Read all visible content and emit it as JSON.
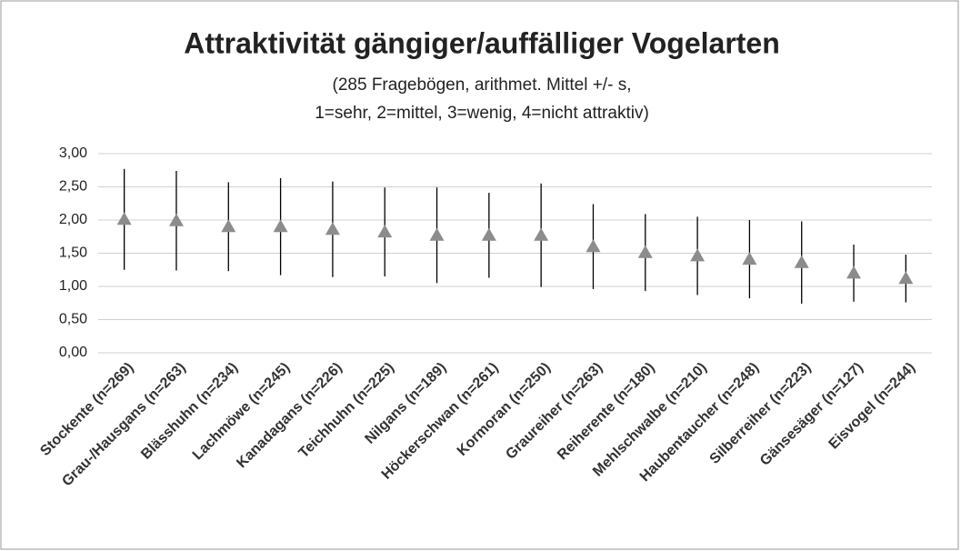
{
  "chart_data": {
    "type": "errorbar",
    "title": "Attraktivität gängiger/auffälliger Vogelarten",
    "subtitle": [
      "(285 Fragebögen, arithmet. Mittel +/- s,",
      "1=sehr, 2=mittel, 3=wenig, 4=nicht attraktiv)"
    ],
    "categories": [
      "Stockente (n=269)",
      "Grau-/Hausgans (n=263)",
      "Blässhuhn (n=234)",
      "Lachmöwe (n=245)",
      "Kanadagans (n=226)",
      "Teichhuhn (n=225)",
      "Nilgans (n=189)",
      "Höckerschwan (n=261)",
      "Kormoran (n=250)",
      "Graureiher (n=263)",
      "Reiherente (n=180)",
      "Mehlschwalbe (n=210)",
      "Haubentaucher (n=248)",
      "Silberreiher (n=223)",
      "Gänsesäger (n=127)",
      "Eisvogel (n=244)"
    ],
    "values": [
      2.01,
      1.99,
      1.9,
      1.9,
      1.86,
      1.82,
      1.77,
      1.77,
      1.77,
      1.6,
      1.51,
      1.46,
      1.41,
      1.36,
      1.2,
      1.12
    ],
    "errors": [
      0.76,
      0.75,
      0.67,
      0.73,
      0.72,
      0.67,
      0.72,
      0.64,
      0.78,
      0.64,
      0.58,
      0.59,
      0.59,
      0.62,
      0.43,
      0.36
    ],
    "color": "#8c8c8c",
    "ylim": [
      0,
      3
    ],
    "yticks": [
      {
        "value": 0,
        "label": "0,00"
      },
      {
        "value": 0.5,
        "label": "0,50"
      },
      {
        "value": 1,
        "label": "1,00"
      },
      {
        "value": 1.5,
        "label": "1,50"
      },
      {
        "value": 2,
        "label": "2,00"
      },
      {
        "value": 2.5,
        "label": "2,50"
      },
      {
        "value": 3,
        "label": "3,00"
      }
    ],
    "grid": true
  }
}
